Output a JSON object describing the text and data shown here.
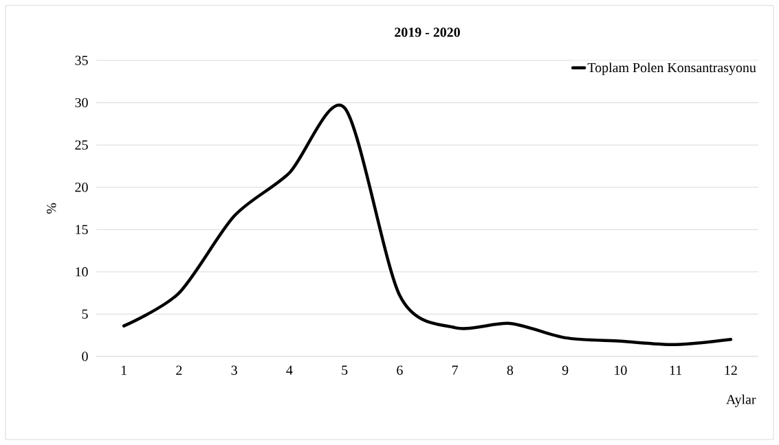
{
  "chart_data": {
    "type": "line",
    "title": "2019 - 2020",
    "xlabel": "Aylar",
    "ylabel": "%",
    "categories": [
      "1",
      "2",
      "3",
      "4",
      "5",
      "6",
      "7",
      "8",
      "9",
      "10",
      "11",
      "12"
    ],
    "series": [
      {
        "name": "Toplam Polen Konsantrasyonu",
        "color": "#000000",
        "values": [
          3.6,
          7.5,
          16.6,
          21.7,
          29.4,
          7.2,
          3.4,
          3.9,
          2.2,
          1.8,
          1.4,
          2.0
        ]
      }
    ],
    "ylim": [
      0,
      35
    ],
    "yticks": [
      0,
      5,
      10,
      15,
      20,
      25,
      30,
      35
    ],
    "grid": "y",
    "legend": "top right"
  }
}
